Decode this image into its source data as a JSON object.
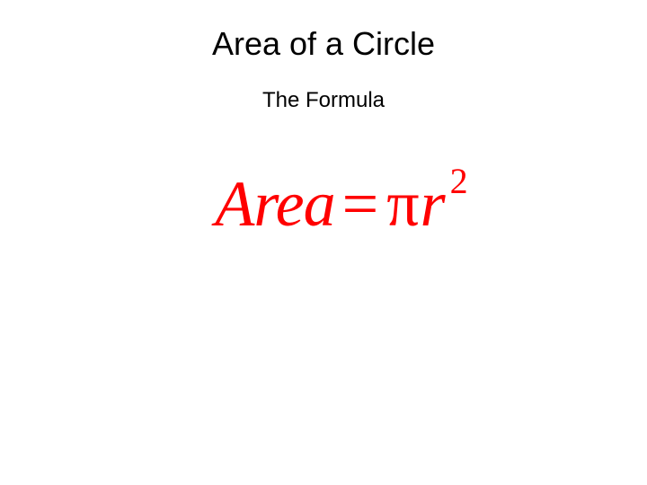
{
  "slide": {
    "title": "Area of a Circle",
    "subtitle": "The Formula",
    "formula": {
      "area_label": "Area",
      "equals": "=",
      "pi_symbol": "π",
      "variable": "r",
      "exponent": "2",
      "color": "#ff0000",
      "font_family": "Times New Roman, serif",
      "font_style": "italic",
      "font_size_main": 72,
      "font_size_exponent": 40
    },
    "title_color": "#000000",
    "title_fontsize": 36,
    "subtitle_color": "#000000",
    "subtitle_fontsize": 24,
    "background_color": "#ffffff"
  }
}
